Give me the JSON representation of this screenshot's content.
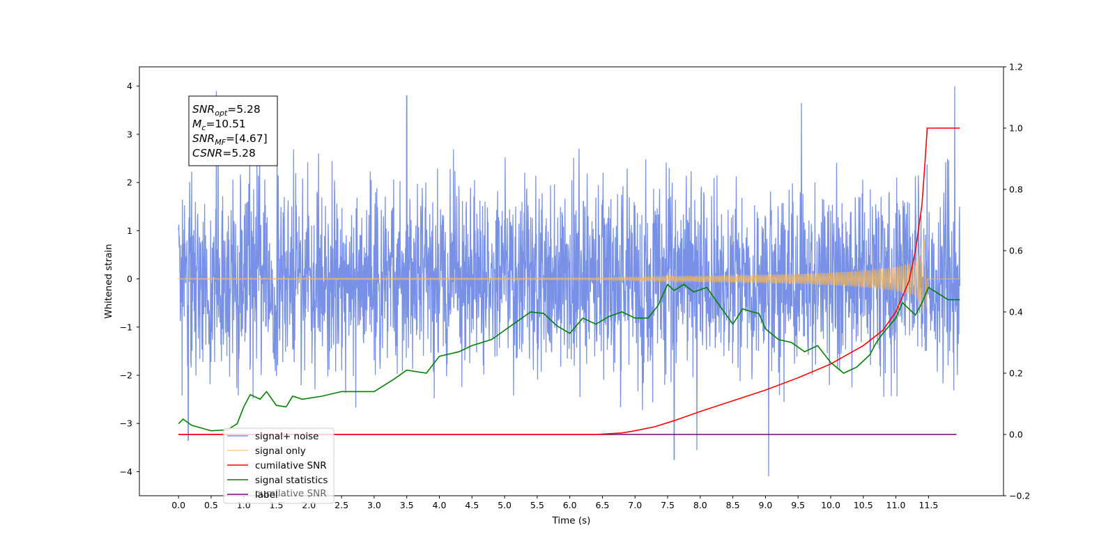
{
  "chart_data": {
    "type": "line",
    "xlabel": "Time (s)",
    "ylabel": "Whitened strain",
    "x_ticks": [
      "0.0",
      "0.5",
      "1.0",
      "1.5",
      "2.0",
      "2.5",
      "3.0",
      "3.5",
      "4.0",
      "4.5",
      "5.0",
      "5.5",
      "6.0",
      "6.5",
      "7.0",
      "7.5",
      "8.0",
      "8.5",
      "9.0",
      "9.5",
      "10.0",
      "10.5",
      "11.0",
      "11.5"
    ],
    "y_ticks_left": [
      "4",
      "3",
      "2",
      "1",
      "0",
      "−1",
      "−2",
      "−3",
      "−4"
    ],
    "y_ticks_right": [
      "1.2",
      "1.0",
      "0.8",
      "0.6",
      "0.4",
      "0.2",
      "0.0",
      "−0.2"
    ],
    "xlim": [
      -0.6,
      12.65
    ],
    "ylim_left": [
      -4.5,
      4.4
    ],
    "ylim_right": [
      -0.2,
      1.2
    ],
    "grid": false,
    "legend_position": "lower-left",
    "annotation": [
      {
        "base": "SNR",
        "sub": "opt",
        "value": "=5.28"
      },
      {
        "base": "M",
        "sub": "c",
        "value": "=10.51"
      },
      {
        "base": "SNR",
        "sub": "MF",
        "value": "=[4.67]"
      },
      {
        "base": "CSNR",
        "sub": "",
        "value": "=5.28"
      }
    ],
    "series": [
      {
        "name": "signal+ noise",
        "color": "#7891e6",
        "axis": "left",
        "x_range": [
          0,
          11.98
        ],
        "value_range": [
          -4.1,
          4.0
        ],
        "peaks": [
          [
            0.58,
            3.9
          ],
          [
            3.5,
            3.8
          ],
          [
            9.55,
            3.65
          ],
          [
            11.9,
            4.0
          ],
          [
            9.05,
            -4.1
          ],
          [
            7.6,
            -3.75
          ],
          [
            7.95,
            -3.55
          ],
          [
            0.15,
            -3.35
          ]
        ]
      },
      {
        "name": "signal only",
        "color": "#f5b85a",
        "axis": "left",
        "envelope": {
          "x": [
            0,
            6.5,
            7.5,
            8.5,
            9.5,
            10.0,
            10.5,
            11.0,
            11.3,
            11.47,
            11.48,
            12.0
          ],
          "amp": [
            0.01,
            0.02,
            0.05,
            0.07,
            0.1,
            0.13,
            0.17,
            0.25,
            0.35,
            0.95,
            0.0,
            0.0
          ]
        }
      },
      {
        "name": "cumilative SNR",
        "color": "#ff0000",
        "axis": "right",
        "x": [
          0,
          6.4,
          6.8,
          7.0,
          7.3,
          7.6,
          8.0,
          8.5,
          9.0,
          9.5,
          10.0,
          10.5,
          10.8,
          11.0,
          11.2,
          11.3,
          11.4,
          11.45,
          11.48,
          11.98
        ],
        "values": [
          0.0,
          0.0,
          0.005,
          0.012,
          0.025,
          0.045,
          0.075,
          0.11,
          0.145,
          0.185,
          0.23,
          0.29,
          0.34,
          0.4,
          0.5,
          0.6,
          0.75,
          0.9,
          1.0,
          1.0
        ]
      },
      {
        "name": "signal statistics",
        "color": "#008000",
        "axis": "right",
        "x": [
          0.0,
          0.07,
          0.2,
          0.5,
          0.75,
          0.9,
          1.0,
          1.1,
          1.25,
          1.35,
          1.5,
          1.65,
          1.75,
          1.9,
          2.2,
          2.5,
          3.0,
          3.3,
          3.5,
          3.8,
          4.0,
          4.3,
          4.5,
          4.8,
          5.0,
          5.2,
          5.4,
          5.6,
          5.8,
          6.0,
          6.2,
          6.4,
          6.6,
          6.8,
          7.0,
          7.2,
          7.35,
          7.5,
          7.6,
          7.75,
          7.9,
          8.1,
          8.3,
          8.5,
          8.65,
          8.8,
          8.9,
          9.0,
          9.2,
          9.4,
          9.6,
          9.8,
          10.0,
          10.2,
          10.4,
          10.6,
          10.7,
          10.8,
          11.0,
          11.1,
          11.3,
          11.4,
          11.5,
          11.65,
          11.8,
          11.98
        ],
        "values": [
          0.035,
          0.05,
          0.03,
          0.012,
          0.015,
          0.035,
          0.09,
          0.13,
          0.115,
          0.14,
          0.095,
          0.09,
          0.125,
          0.115,
          0.125,
          0.14,
          0.14,
          0.18,
          0.21,
          0.2,
          0.255,
          0.27,
          0.29,
          0.31,
          0.34,
          0.37,
          0.4,
          0.395,
          0.355,
          0.33,
          0.38,
          0.36,
          0.385,
          0.4,
          0.38,
          0.38,
          0.42,
          0.49,
          0.47,
          0.49,
          0.465,
          0.48,
          0.42,
          0.36,
          0.41,
          0.4,
          0.395,
          0.345,
          0.31,
          0.3,
          0.27,
          0.29,
          0.235,
          0.2,
          0.22,
          0.26,
          0.3,
          0.33,
          0.38,
          0.43,
          0.39,
          0.43,
          0.48,
          0.46,
          0.44,
          0.44
        ]
      },
      {
        "name": "label",
        "color": "#800080",
        "axis": "right",
        "x": [
          0.0,
          11.93
        ],
        "values": [
          0.0,
          0.0
        ]
      }
    ],
    "hidden_legend_text": "cumilative SNR"
  }
}
